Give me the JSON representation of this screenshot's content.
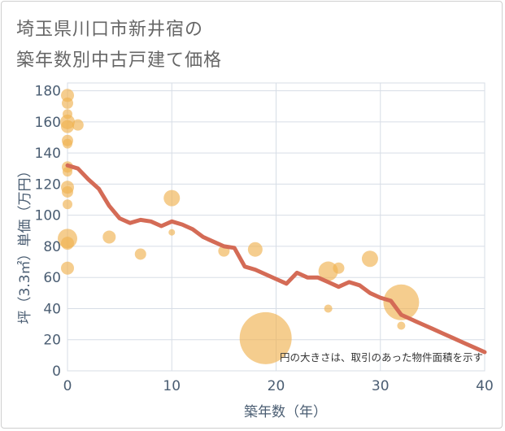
{
  "title_lines": [
    "埼玉県川口市新井宿の",
    "築年数別中古戸建て価格"
  ],
  "chart_data": {
    "type": "scatter",
    "title": "埼玉県川口市新井宿の築年数別中古戸建て価格",
    "xlabel": "築年数（年）",
    "ylabel": "坪（3.3㎡）単価（万円）",
    "xlim": [
      0,
      40
    ],
    "ylim": [
      0,
      185
    ],
    "xticks": [
      0,
      10,
      20,
      30,
      40
    ],
    "yticks": [
      0,
      20,
      40,
      60,
      80,
      100,
      120,
      140,
      160,
      180
    ],
    "grid": true,
    "note": "円の大きさは、取引のあった物件面積を示す",
    "colors": {
      "bubble": "#f0b252",
      "trend": "#d46b56",
      "grid": "#d7dde6"
    },
    "bubbles": [
      {
        "x": 0,
        "y": 177,
        "size": 8
      },
      {
        "x": 0,
        "y": 172,
        "size": 7
      },
      {
        "x": 0,
        "y": 165,
        "size": 6
      },
      {
        "x": 0,
        "y": 160,
        "size": 9
      },
      {
        "x": 0,
        "y": 157,
        "size": 8
      },
      {
        "x": 1,
        "y": 158,
        "size": 7
      },
      {
        "x": 0,
        "y": 148,
        "size": 7
      },
      {
        "x": 0,
        "y": 146,
        "size": 6
      },
      {
        "x": 0,
        "y": 131,
        "size": 7
      },
      {
        "x": 0,
        "y": 128,
        "size": 6
      },
      {
        "x": 0,
        "y": 118,
        "size": 8
      },
      {
        "x": 0,
        "y": 115,
        "size": 7
      },
      {
        "x": 0,
        "y": 107,
        "size": 6
      },
      {
        "x": 0,
        "y": 85,
        "size": 12
      },
      {
        "x": 0,
        "y": 82,
        "size": 8
      },
      {
        "x": 0,
        "y": 66,
        "size": 8
      },
      {
        "x": 4,
        "y": 86,
        "size": 8
      },
      {
        "x": 7,
        "y": 75,
        "size": 7
      },
      {
        "x": 10,
        "y": 111,
        "size": 10
      },
      {
        "x": 10,
        "y": 89,
        "size": 4
      },
      {
        "x": 15,
        "y": 77,
        "size": 7
      },
      {
        "x": 18,
        "y": 78,
        "size": 9
      },
      {
        "x": 19,
        "y": 21,
        "size": 32
      },
      {
        "x": 25,
        "y": 64,
        "size": 12
      },
      {
        "x": 26,
        "y": 66,
        "size": 7
      },
      {
        "x": 25,
        "y": 40,
        "size": 5
      },
      {
        "x": 29,
        "y": 72,
        "size": 10
      },
      {
        "x": 32,
        "y": 44,
        "size": 22
      },
      {
        "x": 32,
        "y": 29,
        "size": 5
      }
    ],
    "trend": {
      "x": [
        0,
        1,
        2,
        3,
        4,
        5,
        6,
        7,
        8,
        9,
        10,
        11,
        12,
        13,
        14,
        15,
        16,
        17,
        18,
        19,
        20,
        21,
        22,
        23,
        24,
        25,
        26,
        27,
        28,
        29,
        30,
        31,
        32,
        33,
        34,
        35,
        36,
        37,
        38,
        39,
        40
      ],
      "y": [
        132,
        130,
        123,
        117,
        106,
        98,
        95,
        97,
        96,
        93,
        96,
        94,
        91,
        86,
        83,
        80,
        79,
        67,
        65,
        62,
        59,
        56,
        63,
        60,
        60,
        57,
        54,
        57,
        55,
        50,
        47,
        45,
        36,
        33,
        30,
        27,
        24,
        21,
        18,
        15,
        12
      ]
    }
  }
}
